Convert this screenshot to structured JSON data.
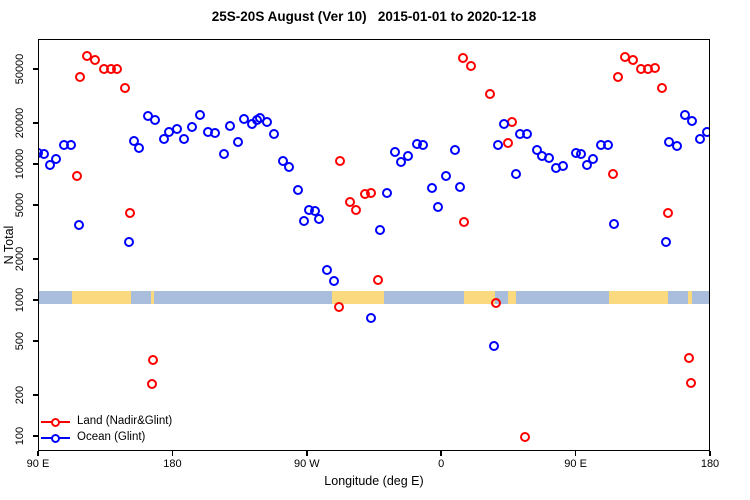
{
  "title": "25S-20S August (Ver 10)   2015-01-01 to 2020-12-18",
  "chart_data": {
    "type": "scatter",
    "title": "25S-20S August (Ver 10)   2015-01-01 to 2020-12-18",
    "xlabel": "Longitude (deg E)",
    "ylabel": "N Total",
    "x_axis": {
      "range_deg": [
        90,
        540
      ],
      "ticks": [
        {
          "lon": 90,
          "label": "90 E"
        },
        {
          "lon": 180,
          "label": "180"
        },
        {
          "lon": 270,
          "label": "90 W"
        },
        {
          "lon": 360,
          "label": "0"
        },
        {
          "lon": 450,
          "label": "90 E"
        },
        {
          "lon": 540,
          "label": "180"
        }
      ]
    },
    "y_axis": {
      "scale": "log10",
      "range": [
        80,
        83000
      ],
      "ticks": [
        100,
        200,
        500,
        1000,
        2000,
        5000,
        10000,
        20000,
        50000
      ]
    },
    "land_ocean_strip": {
      "center_n": 1000,
      "ocean_color": "#A9BEDC",
      "land_color": "#FBD97F",
      "land_segments_lon": [
        [
          112,
          151.5
        ],
        [
          165.3,
          167.3
        ],
        [
          286.5,
          321
        ],
        [
          374.3,
          395.3
        ],
        [
          403.8,
          409.2
        ],
        [
          471.8,
          511.3
        ],
        [
          524.8,
          527
        ]
      ]
    },
    "series": [
      {
        "name": "Land (Nadir&Glint)",
        "color": "#FF0000",
        "points": [
          [
            122.1,
            63000
          ],
          [
            127.5,
            59000
          ],
          [
            133.5,
            51000
          ],
          [
            138.2,
            51000
          ],
          [
            142.2,
            51000
          ],
          [
            117.4,
            44000
          ],
          [
            147.5,
            37000
          ],
          [
            115.4,
            8300
          ],
          [
            150.9,
            4400
          ],
          [
            166.3,
            370
          ],
          [
            165.6,
            245
          ],
          [
            291.4,
            10700
          ],
          [
            298.1,
            5300
          ],
          [
            302.1,
            4700
          ],
          [
            308.1,
            6100
          ],
          [
            312.2,
            6200
          ],
          [
            316.8,
            1430
          ],
          [
            290.8,
            900
          ],
          [
            373.8,
            61000
          ],
          [
            379.1,
            53000
          ],
          [
            391.8,
            33000
          ],
          [
            406.5,
            20700
          ],
          [
            403.8,
            14500
          ],
          [
            374.4,
            3800
          ],
          [
            395.8,
            970
          ],
          [
            415.2,
            100
          ],
          [
            482.1,
            62000
          ],
          [
            487.5,
            59000
          ],
          [
            492.8,
            51000
          ],
          [
            497.5,
            51000
          ],
          [
            502.2,
            52000
          ],
          [
            477.4,
            44000
          ],
          [
            507.5,
            37000
          ],
          [
            474.1,
            8600
          ],
          [
            510.9,
            4400
          ],
          [
            525.0,
            380
          ],
          [
            526.3,
            250
          ]
        ]
      },
      {
        "name": "Ocean (Glint)",
        "color": "#0000FF",
        "points": [
          [
            89.5,
            12200
          ],
          [
            93.3,
            12100
          ],
          [
            97.4,
            10000
          ],
          [
            101.4,
            11100
          ],
          [
            106.7,
            14000
          ],
          [
            111.4,
            14000
          ],
          [
            116.8,
            3600
          ],
          [
            150.2,
            2700
          ],
          [
            153.6,
            15000
          ],
          [
            156.9,
            13300
          ],
          [
            162.9,
            22900
          ],
          [
            167.6,
            21400
          ],
          [
            173.6,
            15500
          ],
          [
            177.0,
            17500
          ],
          [
            182.3,
            18400
          ],
          [
            187.0,
            15500
          ],
          [
            192.4,
            19000
          ],
          [
            197.7,
            23300
          ],
          [
            203.1,
            17500
          ],
          [
            207.8,
            17200
          ],
          [
            213.8,
            12000
          ],
          [
            217.8,
            19400
          ],
          [
            223.2,
            14800
          ],
          [
            227.2,
            21800
          ],
          [
            232.5,
            20000
          ],
          [
            235.9,
            21400
          ],
          [
            237.9,
            22200
          ],
          [
            242.6,
            20700
          ],
          [
            247.3,
            16900
          ],
          [
            253.3,
            10700
          ],
          [
            257.3,
            9700
          ],
          [
            263.3,
            6500
          ],
          [
            270.7,
            4700
          ],
          [
            274.7,
            4600
          ],
          [
            267.3,
            3900
          ],
          [
            277.4,
            4000
          ],
          [
            282.7,
            1700
          ],
          [
            287.4,
            1400
          ],
          [
            312.2,
            750
          ],
          [
            318.2,
            3300
          ],
          [
            322.9,
            6200
          ],
          [
            328.2,
            12500
          ],
          [
            332.2,
            10500
          ],
          [
            336.9,
            11600
          ],
          [
            342.9,
            14300
          ],
          [
            346.9,
            14000
          ],
          [
            353.0,
            6800
          ],
          [
            357.0,
            4900
          ],
          [
            362.3,
            8300
          ],
          [
            368.4,
            12900
          ],
          [
            371.7,
            6900
          ],
          [
            394.5,
            470
          ],
          [
            397.1,
            14000
          ],
          [
            401.1,
            20000
          ],
          [
            409.2,
            8600
          ],
          [
            411.9,
            16900
          ],
          [
            416.6,
            16900
          ],
          [
            423.3,
            12900
          ],
          [
            426.6,
            11600
          ],
          [
            431.3,
            11200
          ],
          [
            436.0,
            9500
          ],
          [
            440.7,
            9800
          ],
          [
            449.4,
            12300
          ],
          [
            452.7,
            12100
          ],
          [
            456.7,
            10000
          ],
          [
            460.7,
            11100
          ],
          [
            466.1,
            14000
          ],
          [
            470.8,
            14000
          ],
          [
            474.8,
            3700
          ],
          [
            509.6,
            2700
          ],
          [
            512.2,
            14800
          ],
          [
            516.9,
            13900
          ],
          [
            522.3,
            23300
          ],
          [
            527.0,
            21100
          ],
          [
            532.3,
            15500
          ],
          [
            537.0,
            17500
          ]
        ]
      }
    ],
    "legend": {
      "position": "bottom-left",
      "items": [
        {
          "label": "Land (Nadir&Glint)",
          "color": "#FF0000"
        },
        {
          "label": "Ocean (Glint)",
          "color": "#0000FF"
        }
      ]
    }
  }
}
